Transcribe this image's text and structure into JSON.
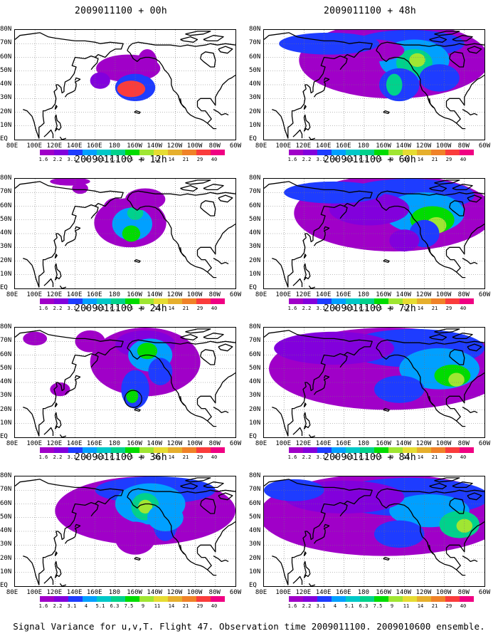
{
  "figure": {
    "caption": "Signal Variance for u,v,T. Flight 47. Observation time 2009011100. 2009010600 ensemble."
  },
  "map": {
    "lat_labels": [
      "80N",
      "70N",
      "60N",
      "50N",
      "40N",
      "30N",
      "20N",
      "10N",
      "EQ"
    ],
    "lon_labels": [
      "80E",
      "100E",
      "120E",
      "140E",
      "160E",
      "180",
      "160W",
      "140W",
      "120W",
      "100W",
      "80W",
      "60W"
    ],
    "coastline_color": "#000000",
    "grid": "dotted"
  },
  "colorbar": {
    "levels": [
      "1.6",
      "2.2",
      "3.1",
      "4",
      "5.1",
      "6.3",
      "7.5",
      "9",
      "11",
      "14",
      "21",
      "29",
      "40"
    ],
    "colors": [
      "#a000c8",
      "#8200dc",
      "#1e3cff",
      "#00a0ff",
      "#00c8c8",
      "#00d28c",
      "#00dc00",
      "#a0e632",
      "#e6dc32",
      "#e6af2d",
      "#f08228",
      "#fa3c3c",
      "#f00082"
    ]
  },
  "panels": [
    {
      "title": "2009011100 + 00h",
      "forecast_hour": 0,
      "column": "left",
      "row": 1,
      "marker": false
    },
    {
      "title": "2009011100 + 12h",
      "forecast_hour": 12,
      "column": "left",
      "row": 2,
      "marker": false
    },
    {
      "title": "2009011100 + 24h",
      "forecast_hour": 24,
      "column": "left",
      "row": 3,
      "marker": true
    },
    {
      "title": "2009011100 + 36h",
      "forecast_hour": 36,
      "column": "left",
      "row": 4,
      "marker": false
    },
    {
      "title": "2009011100 + 48h",
      "forecast_hour": 48,
      "column": "right",
      "row": 1,
      "marker": false
    },
    {
      "title": "2009011100 + 60h",
      "forecast_hour": 60,
      "column": "right",
      "row": 2,
      "marker": false
    },
    {
      "title": "2009011100 + 72h",
      "forecast_hour": 72,
      "column": "right",
      "row": 3,
      "marker": false
    },
    {
      "title": "2009011100 + 84h",
      "forecast_hour": 84,
      "column": "right",
      "row": 4,
      "marker": false
    }
  ]
}
